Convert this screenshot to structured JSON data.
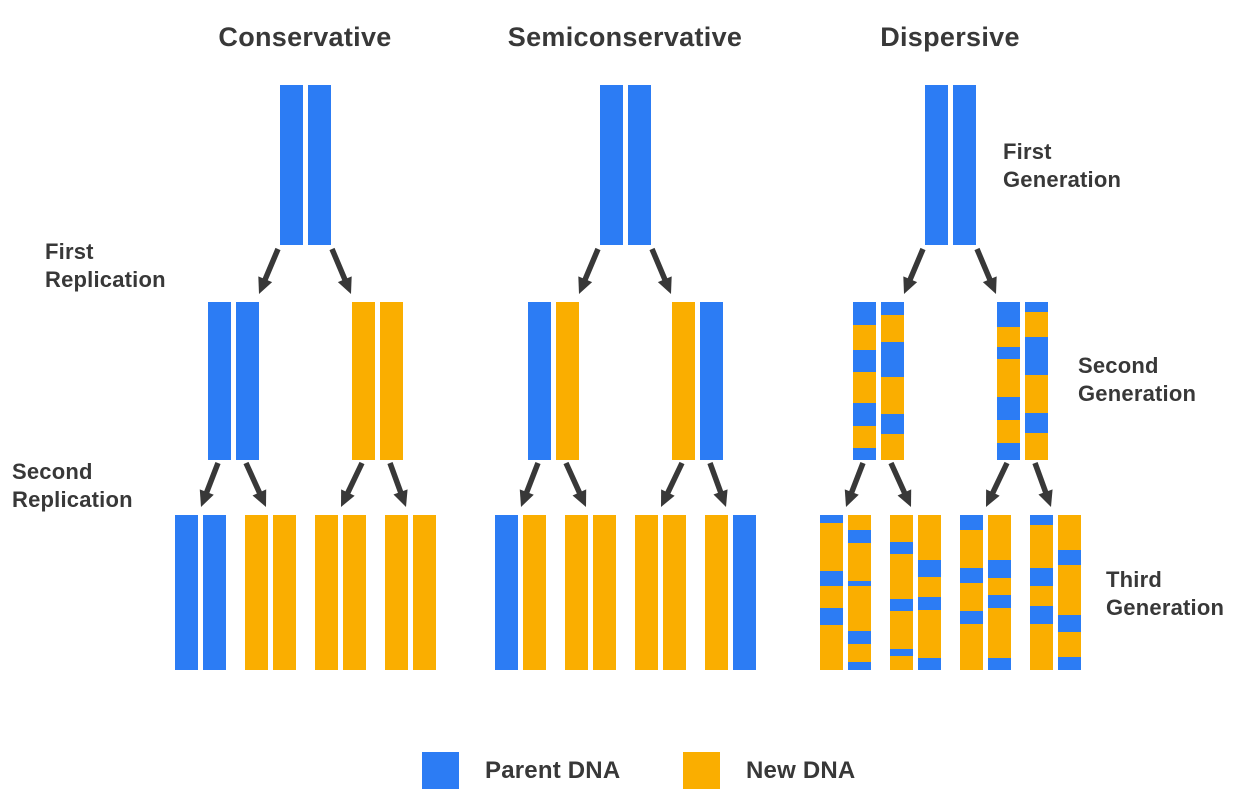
{
  "palette": {
    "parent": "#2C7CF4",
    "new": "#FAAE00",
    "arrow": "#383838",
    "text": "#383838",
    "background": "#FFFFFF"
  },
  "columns": [
    {
      "title": "Conservative",
      "rows": [
        {
          "pairs": [
            [
              [
                [
                  "P",
                  1
                ]
              ],
              [
                [
                  "P",
                  1
                ]
              ]
            ]
          ]
        },
        {
          "pairs": [
            [
              [
                [
                  "P",
                  1
                ]
              ],
              [
                [
                  "P",
                  1
                ]
              ]
            ],
            [
              [
                [
                  "N",
                  1
                ]
              ],
              [
                [
                  "N",
                  1
                ]
              ]
            ]
          ]
        },
        {
          "pairs": [
            [
              [
                [
                  "P",
                  1
                ]
              ],
              [
                [
                  "P",
                  1
                ]
              ]
            ],
            [
              [
                [
                  "N",
                  1
                ]
              ],
              [
                [
                  "N",
                  1
                ]
              ]
            ],
            [
              [
                [
                  "N",
                  1
                ]
              ],
              [
                [
                  "N",
                  1
                ]
              ]
            ],
            [
              [
                [
                  "N",
                  1
                ]
              ],
              [
                [
                  "N",
                  1
                ]
              ]
            ]
          ]
        }
      ]
    },
    {
      "title": "Semiconservative",
      "rows": [
        {
          "pairs": [
            [
              [
                [
                  "P",
                  1
                ]
              ],
              [
                [
                  "P",
                  1
                ]
              ]
            ]
          ]
        },
        {
          "pairs": [
            [
              [
                [
                  "P",
                  1
                ]
              ],
              [
                [
                  "N",
                  1
                ]
              ]
            ],
            [
              [
                [
                  "N",
                  1
                ]
              ],
              [
                [
                  "P",
                  1
                ]
              ]
            ]
          ]
        },
        {
          "pairs": [
            [
              [
                [
                  "P",
                  1
                ]
              ],
              [
                [
                  "N",
                  1
                ]
              ]
            ],
            [
              [
                [
                  "N",
                  1
                ]
              ],
              [
                [
                  "N",
                  1
                ]
              ]
            ],
            [
              [
                [
                  "N",
                  1
                ]
              ],
              [
                [
                  "N",
                  1
                ]
              ]
            ],
            [
              [
                [
                  "N",
                  1
                ]
              ],
              [
                [
                  "P",
                  1
                ]
              ]
            ]
          ]
        }
      ]
    },
    {
      "title": "Dispersive",
      "rows": [
        {
          "pairs": [
            [
              [
                [
                  "P",
                  1
                ]
              ],
              [
                [
                  "P",
                  1
                ]
              ]
            ]
          ]
        },
        {
          "pairs": [
            [
              [
                [
                  "P",
                  23
                ],
                [
                  "N",
                  25
                ],
                [
                  "P",
                  22
                ],
                [
                  "N",
                  31
                ],
                [
                  "P",
                  23
                ],
                [
                  "N",
                  22
                ],
                [
                  "P",
                  12
                ]
              ],
              [
                [
                  "P",
                  13
                ],
                [
                  "N",
                  27
                ],
                [
                  "P",
                  35
                ],
                [
                  "N",
                  37
                ],
                [
                  "P",
                  20
                ],
                [
                  "N",
                  26
                ]
              ]
            ],
            [
              [
                [
                  "P",
                  25
                ],
                [
                  "N",
                  20
                ],
                [
                  "P",
                  12
                ],
                [
                  "N",
                  37
                ],
                [
                  "P",
                  23
                ],
                [
                  "N",
                  23
                ],
                [
                  "P",
                  17
                ]
              ],
              [
                [
                  "P",
                  10
                ],
                [
                  "N",
                  25
                ],
                [
                  "P",
                  38
                ],
                [
                  "N",
                  38
                ],
                [
                  "P",
                  20
                ],
                [
                  "N",
                  27
                ]
              ]
            ]
          ]
        },
        {
          "pairs": [
            [
              [
                [
                  "P",
                  8
                ],
                [
                  "N",
                  48
                ],
                [
                  "P",
                  15
                ],
                [
                  "N",
                  22
                ],
                [
                  "P",
                  17
                ],
                [
                  "N",
                  45
                ]
              ],
              [
                [
                  "N",
                  15
                ],
                [
                  "P",
                  13
                ],
                [
                  "N",
                  38
                ],
                [
                  "P",
                  5
                ],
                [
                  "N",
                  45
                ],
                [
                  "P",
                  13
                ],
                [
                  "N",
                  18
                ],
                [
                  "P",
                  8
                ]
              ]
            ],
            [
              [
                [
                  "N",
                  27
                ],
                [
                  "P",
                  12
                ],
                [
                  "N",
                  45
                ],
                [
                  "P",
                  12
                ],
                [
                  "N",
                  38
                ],
                [
                  "P",
                  7
                ],
                [
                  "N",
                  14
                ]
              ],
              [
                [
                  "N",
                  45
                ],
                [
                  "P",
                  17
                ],
                [
                  "N",
                  20
                ],
                [
                  "P",
                  13
                ],
                [
                  "N",
                  48
                ],
                [
                  "P",
                  12
                ]
              ]
            ],
            [
              [
                [
                  "P",
                  15
                ],
                [
                  "N",
                  38
                ],
                [
                  "P",
                  15
                ],
                [
                  "N",
                  28
                ],
                [
                  "P",
                  13
                ],
                [
                  "N",
                  46
                ]
              ],
              [
                [
                  "N",
                  45
                ],
                [
                  "P",
                  18
                ],
                [
                  "N",
                  17
                ],
                [
                  "P",
                  13
                ],
                [
                  "N",
                  50
                ],
                [
                  "P",
                  12
                ]
              ]
            ],
            [
              [
                [
                  "P",
                  10
                ],
                [
                  "N",
                  43
                ],
                [
                  "P",
                  18
                ],
                [
                  "N",
                  20
                ],
                [
                  "P",
                  18
                ],
                [
                  "N",
                  46
                ]
              ],
              [
                [
                  "N",
                  35
                ],
                [
                  "P",
                  15
                ],
                [
                  "N",
                  50
                ],
                [
                  "P",
                  17
                ],
                [
                  "N",
                  25
                ],
                [
                  "P",
                  13
                ]
              ]
            ]
          ]
        }
      ]
    }
  ],
  "row_labels": {
    "left": [
      {
        "lines": [
          "First",
          "Replication"
        ]
      },
      {
        "lines": [
          "Second",
          "Replication"
        ]
      }
    ],
    "right": [
      {
        "lines": [
          "First",
          "Generation"
        ]
      },
      {
        "lines": [
          "Second",
          "Generation"
        ]
      },
      {
        "lines": [
          "Third",
          "Generation"
        ]
      }
    ]
  },
  "legend": {
    "items": [
      {
        "label": "Parent DNA",
        "color_key": "parent"
      },
      {
        "label": "New DNA",
        "color_key": "new"
      }
    ]
  }
}
